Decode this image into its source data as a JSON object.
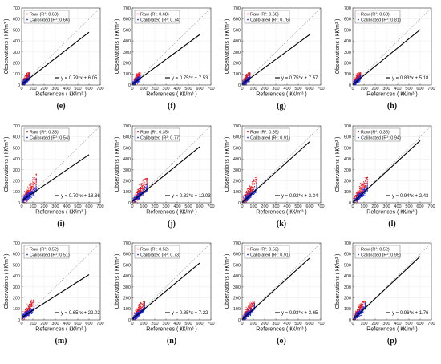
{
  "chart_data": [
    {
      "label": "(e)",
      "type": "scatter",
      "legend": {
        "raw": "Raw (R²: 0.68)",
        "calibrated": "Calibrated (R²: 0.66)"
      },
      "fit": {
        "slope": 0.79,
        "intercept": 6.05,
        "text": "y = 0.79*x + 6.05"
      },
      "cloud": {
        "xmax": 70,
        "ymax": 110,
        "spread": 0.7
      },
      "xlabel": "References ( ㏍/m³ )",
      "ylabel": "Observations ( ㏍/m³ )",
      "xlim": [
        0,
        700
      ],
      "ylim": [
        0,
        700
      ]
    },
    {
      "label": "(f)",
      "type": "scatter",
      "legend": {
        "raw": "Raw (R²: 0.68)",
        "calibrated": "Calibrated (R²: 0.74)"
      },
      "fit": {
        "slope": 0.75,
        "intercept": 7.53,
        "text": "y = 0.75*x + 7.53"
      },
      "cloud": {
        "xmax": 70,
        "ymax": 110,
        "spread": 0.7
      },
      "xlabel": "References ( ㏍/m³ )",
      "ylabel": "Observations ( ㏍/m³ )",
      "xlim": [
        0,
        700
      ],
      "ylim": [
        0,
        700
      ]
    },
    {
      "label": "(g)",
      "type": "scatter",
      "legend": {
        "raw": "Raw (R²: 0.68)",
        "calibrated": "Calibrated (R²: 0.76)"
      },
      "fit": {
        "slope": 0.75,
        "intercept": 7.57,
        "text": "y = 0.75*x + 7.57"
      },
      "cloud": {
        "xmax": 70,
        "ymax": 110,
        "spread": 0.7
      },
      "xlabel": "References ( ㏍/m³ )",
      "ylabel": "Observations ( ㏍/m³ )",
      "xlim": [
        0,
        700
      ],
      "ylim": [
        0,
        700
      ]
    },
    {
      "label": "(h)",
      "type": "scatter",
      "legend": {
        "raw": "Raw (R²: 0.68)",
        "calibrated": "Calibrated (R²: 0.81)"
      },
      "fit": {
        "slope": 0.83,
        "intercept": 5.18,
        "text": "y = 0.83*x + 5.18"
      },
      "cloud": {
        "xmax": 70,
        "ymax": 110,
        "spread": 0.7
      },
      "xlabel": "References ( ㏍/m³ )",
      "ylabel": "Observations ( ㏍/m³ )",
      "xlim": [
        0,
        700
      ],
      "ylim": [
        0,
        700
      ]
    },
    {
      "label": "(i)",
      "type": "scatter",
      "legend": {
        "raw": "Raw (R²: 0.35)",
        "calibrated": "Calibrated (R²: 0.54)"
      },
      "fit": {
        "slope": 0.7,
        "intercept": 18.86,
        "text": "y = 0.70*x + 18.86"
      },
      "cloud": {
        "xmax": 130,
        "ymax": 260,
        "spread": 1.0
      },
      "xlabel": "References ( ㏍/m³ )",
      "ylabel": "Observations ( ㏍/m³ )",
      "xlim": [
        0,
        700
      ],
      "ylim": [
        0,
        700
      ]
    },
    {
      "label": "(j)",
      "type": "scatter",
      "legend": {
        "raw": "Raw (R²: 0.35)",
        "calibrated": "Calibrated (R²: 0.77)"
      },
      "fit": {
        "slope": 0.83,
        "intercept": 12.03,
        "text": "y = 0.83*x + 12.03"
      },
      "cloud": {
        "xmax": 130,
        "ymax": 220,
        "spread": 0.9
      },
      "xlabel": "References ( ㏍/m³ )",
      "ylabel": "Observations ( ㏍/m³ )",
      "xlim": [
        0,
        700
      ],
      "ylim": [
        0,
        700
      ]
    },
    {
      "label": "(k)",
      "type": "scatter",
      "legend": {
        "raw": "Raw (R²: 0.35)",
        "calibrated": "Calibrated (R²: 0.91)"
      },
      "fit": {
        "slope": 0.92,
        "intercept": 3.34,
        "text": "y = 0.92*x + 3.34"
      },
      "cloud": {
        "xmax": 130,
        "ymax": 230,
        "spread": 0.9
      },
      "xlabel": "References ( ㏍/m³ )",
      "ylabel": "Observations ( ㏍/m³ )",
      "xlim": [
        0,
        700
      ],
      "ylim": [
        0,
        700
      ]
    },
    {
      "label": "(l)",
      "type": "scatter",
      "legend": {
        "raw": "Raw (R²: 0.35)",
        "calibrated": "Calibrated (R²: 0.94)"
      },
      "fit": {
        "slope": 0.94,
        "intercept": 2.43,
        "text": "y = 0.94*x + 2.43"
      },
      "cloud": {
        "xmax": 130,
        "ymax": 230,
        "spread": 0.9
      },
      "xlabel": "References ( ㏍/m³ )",
      "ylabel": "Observations ( ㏍/m³ )",
      "xlim": [
        0,
        700
      ],
      "ylim": [
        0,
        700
      ]
    },
    {
      "label": "(m)",
      "type": "scatter",
      "legend": {
        "raw": "Raw (R²: 0.52)",
        "calibrated": "Calibrated (R²: 0.51)"
      },
      "fit": {
        "slope": 0.65,
        "intercept": 22.02,
        "text": "y = 0.65*x + 22.02"
      },
      "cloud": {
        "xmax": 110,
        "ymax": 180,
        "spread": 0.8
      },
      "xlabel": "References ( ㏍/m³ )",
      "ylabel": "Observations ( ㏍/m³ )",
      "xlim": [
        0,
        700
      ],
      "ylim": [
        0,
        700
      ]
    },
    {
      "label": "(n)",
      "type": "scatter",
      "legend": {
        "raw": "Raw (R²: 0.52)",
        "calibrated": "Calibrated (R²: 0.73)"
      },
      "fit": {
        "slope": 0.85,
        "intercept": 7.22,
        "text": "y = 0.85*x + 7.22"
      },
      "cloud": {
        "xmax": 110,
        "ymax": 170,
        "spread": 0.8
      },
      "xlabel": "References ( ㏍/m³ )",
      "ylabel": "Observations ( ㏍/m³ )",
      "xlim": [
        0,
        700
      ],
      "ylim": [
        0,
        700
      ]
    },
    {
      "label": "(o)",
      "type": "scatter",
      "legend": {
        "raw": "Raw (R²: 0.52)",
        "calibrated": "Calibrated (R²: 0.91)"
      },
      "fit": {
        "slope": 0.93,
        "intercept": 3.65,
        "text": "y = 0.93*x + 3.65"
      },
      "cloud": {
        "xmax": 110,
        "ymax": 170,
        "spread": 0.8
      },
      "xlabel": "References ( ㏍/m³ )",
      "ylabel": "Observations ( ㏍/m³ )",
      "xlim": [
        0,
        700
      ],
      "ylim": [
        0,
        700
      ]
    },
    {
      "label": "(p)",
      "type": "scatter",
      "legend": {
        "raw": "Raw (R²: 0.52)",
        "calibrated": "Calibrated (R²: 0.95)"
      },
      "fit": {
        "slope": 0.96,
        "intercept": 1.76,
        "text": "y = 0.96*x + 1.76"
      },
      "cloud": {
        "xmax": 110,
        "ymax": 170,
        "spread": 0.8
      },
      "xlabel": "References ( ㏍/m³ )",
      "ylabel": "Observations ( ㏍/m³ )",
      "xlim": [
        0,
        700
      ],
      "ylim": [
        0,
        700
      ]
    }
  ],
  "ticks": [
    0,
    100,
    200,
    300,
    400,
    500,
    600,
    700
  ],
  "colors": {
    "raw": "#e8141c",
    "calibrated": "#1428e6",
    "fit": "#000000",
    "identity": "#9a9a9a",
    "axis": "#333333",
    "grid": "#ebebeb"
  }
}
